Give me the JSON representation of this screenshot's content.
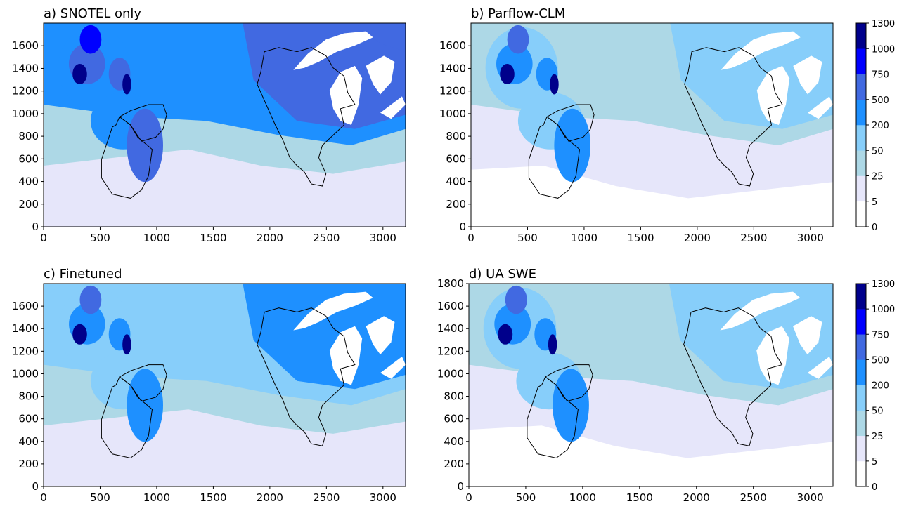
{
  "chart_data": [
    {
      "type": "heatmap",
      "title": "a) SNOTEL only",
      "x_ticks": [
        0,
        500,
        1000,
        1500,
        2000,
        2500,
        3000
      ],
      "y_ticks": [
        0,
        200,
        400,
        600,
        800,
        1000,
        1200,
        1400,
        1600
      ],
      "xlim": [
        0,
        3200
      ],
      "ylim": [
        0,
        1800
      ],
      "dominant_class": "high"
    },
    {
      "type": "heatmap",
      "title": "b) Parflow-CLM",
      "x_ticks": [
        0,
        500,
        1000,
        1500,
        2000,
        2500,
        3000
      ],
      "y_ticks": [
        0,
        200,
        400,
        600,
        800,
        1000,
        1200,
        1400,
        1600
      ],
      "xlim": [
        0,
        3200
      ],
      "ylim": [
        0,
        1800
      ],
      "dominant_class": "low"
    },
    {
      "type": "heatmap",
      "title": "c) Finetuned",
      "x_ticks": [
        0,
        500,
        1000,
        1500,
        2000,
        2500,
        3000
      ],
      "y_ticks": [
        0,
        200,
        400,
        600,
        800,
        1000,
        1200,
        1400,
        1600
      ],
      "xlim": [
        0,
        3200
      ],
      "ylim": [
        0,
        1800
      ],
      "dominant_class": "mid"
    },
    {
      "type": "heatmap",
      "title": "d) UA SWE",
      "x_ticks": [
        0,
        500,
        1000,
        1500,
        2000,
        2500,
        3000
      ],
      "y_ticks": [
        0,
        200,
        400,
        600,
        800,
        1000,
        1200,
        1400,
        1600,
        1800
      ],
      "xlim": [
        0,
        3200
      ],
      "ylim": [
        0,
        1800
      ],
      "dominant_class": "low"
    }
  ],
  "colorbar": {
    "levels": [
      0,
      5,
      25,
      50,
      200,
      500,
      750,
      1000,
      1300
    ],
    "colors": [
      "#ffffff",
      "#e6e6fa",
      "#add8e6",
      "#87cefa",
      "#1e90ff",
      "#4169e1",
      "#0000ff",
      "#00008b"
    ]
  },
  "map_colors": {
    "lake": "#ffffff",
    "outline": "#000000"
  }
}
